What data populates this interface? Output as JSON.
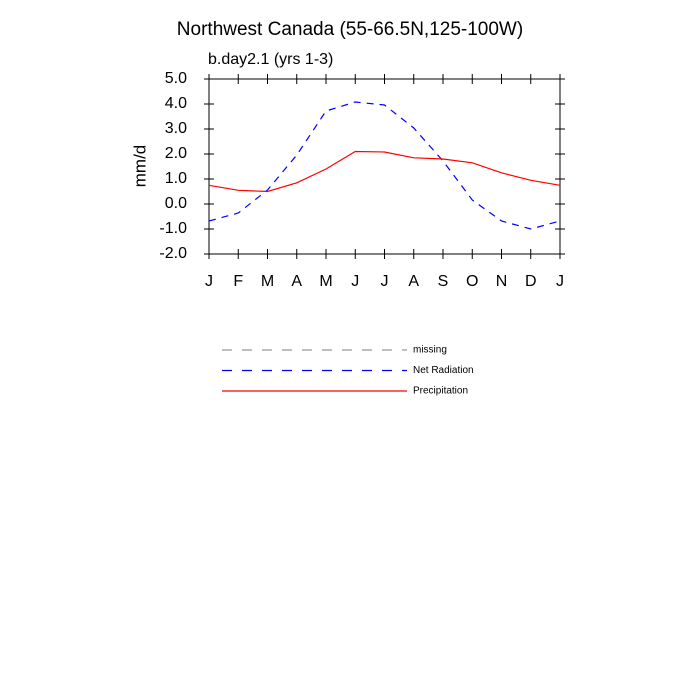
{
  "chart_data": {
    "type": "line",
    "title": "Northwest Canada (55-66.5N,125-100W)",
    "subtitle": "b.day2.1 (yrs 1-3)",
    "y_label": "mm/d",
    "categories": [
      "J",
      "F",
      "M",
      "A",
      "M",
      "J",
      "J",
      "A",
      "S",
      "O",
      "N",
      "D",
      "J"
    ],
    "series": [
      {
        "name": "missing",
        "color": "#999999",
        "dash": true,
        "values": [
          null,
          null,
          null,
          null,
          null,
          null,
          null,
          null,
          null,
          null,
          null,
          null,
          null
        ]
      },
      {
        "name": "Net Radiation",
        "color": "#0000ff",
        "dash": true,
        "values": [
          -0.68,
          -0.36,
          0.56,
          1.96,
          3.72,
          4.08,
          3.96,
          3.04,
          1.72,
          0.16,
          -0.68,
          -1.0,
          -0.68
        ]
      },
      {
        "name": "Precipitation",
        "color": "#ff0000",
        "dash": false,
        "values": [
          0.75,
          0.55,
          0.5,
          0.85,
          1.4,
          2.1,
          2.08,
          1.85,
          1.8,
          1.65,
          1.25,
          0.95,
          0.75
        ]
      }
    ],
    "ylim": [
      -2,
      5
    ],
    "yticks": [
      {
        "value": -2,
        "label": "-2.0"
      },
      {
        "value": -1,
        "label": "-1.0"
      },
      {
        "value": 0,
        "label": "0.0"
      },
      {
        "value": 1,
        "label": "1.0"
      },
      {
        "value": 2,
        "label": "2.0"
      },
      {
        "value": 3,
        "label": "3.0"
      },
      {
        "value": 4,
        "label": "4.0"
      },
      {
        "value": 5,
        "label": "5.0"
      }
    ]
  }
}
